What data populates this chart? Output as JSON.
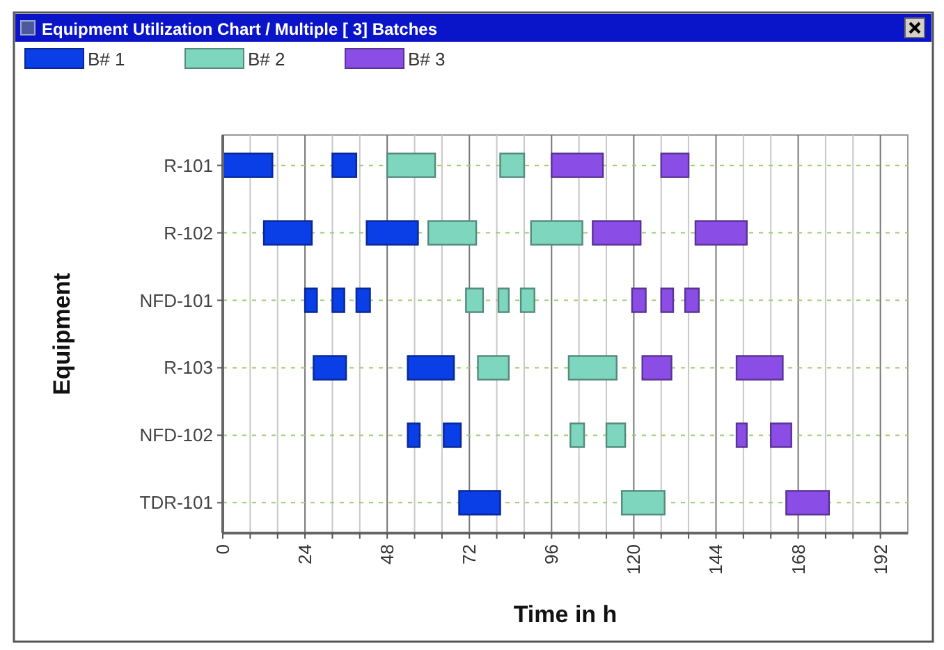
{
  "chart_data": {
    "type": "bar",
    "orientation": "horizontal",
    "title": "Equipment Utilization Chart / Multiple [ 3] Batches",
    "xlabel": "Time in h",
    "ylabel": "Equipment",
    "categories": [
      "R-101",
      "R-102",
      "NFD-101",
      "R-103",
      "NFD-102",
      "TDR-101"
    ],
    "series": [
      {
        "name": "B# 1",
        "color": "#0a3ee6",
        "base": [
          0,
          12,
          24,
          26.5,
          54,
          69
        ],
        "values": [
          14.5,
          14,
          3.5,
          9.5,
          3.5,
          12
        ]
      },
      {
        "color": "#0a3ee6",
        "base": [
          32,
          42,
          32,
          54,
          64.5,
          null
        ],
        "values": [
          7,
          15,
          3.5,
          13.5,
          5,
          null
        ]
      },
      {
        "color": "#0a3ee6",
        "base": [
          null,
          null,
          39,
          null,
          null,
          null
        ],
        "values": [
          null,
          null,
          4,
          null,
          null,
          null
        ]
      },
      {
        "name": "B# 2",
        "color": "#7fd6bf",
        "base": [
          48,
          60,
          71,
          74.5,
          101.5,
          116.5
        ],
        "values": [
          14,
          14,
          5,
          9,
          4,
          12.5
        ]
      },
      {
        "color": "#7fd6bf",
        "base": [
          81,
          90,
          80.5,
          101,
          112,
          null
        ],
        "values": [
          7,
          15,
          3,
          14,
          5.5,
          null
        ]
      },
      {
        "color": "#7fd6bf",
        "base": [
          null,
          null,
          87,
          null,
          null,
          null
        ],
        "values": [
          null,
          null,
          4,
          null,
          null,
          null
        ]
      },
      {
        "name": "B# 3",
        "color": "#8a4ee6",
        "base": [
          96,
          108,
          119.5,
          122.5,
          150,
          164.5
        ],
        "values": [
          15,
          14,
          4,
          8.5,
          3,
          12.5
        ]
      },
      {
        "color": "#8a4ee6",
        "base": [
          128,
          138,
          128,
          150,
          160,
          null
        ],
        "values": [
          8,
          15,
          3.5,
          13.5,
          6,
          null
        ]
      },
      {
        "color": "#8a4ee6",
        "base": [
          null,
          null,
          135,
          null,
          null,
          null
        ],
        "values": [
          null,
          null,
          4,
          null,
          null,
          null
        ]
      }
    ],
    "xlim": [
      0,
      200
    ],
    "xticks": [
      0,
      {
        "value": 8,
        "label": null
      },
      {
        "value": 16,
        "label": null
      },
      24,
      {
        "value": 32,
        "label": null
      },
      {
        "value": 40,
        "label": null
      },
      48,
      {
        "value": 56,
        "label": null
      },
      {
        "value": 64,
        "label": null
      },
      72,
      {
        "value": 80,
        "label": null
      },
      {
        "value": 88,
        "label": null
      },
      96,
      {
        "value": 104,
        "label": null
      },
      {
        "value": 112,
        "label": null
      },
      120,
      {
        "value": 128,
        "label": null
      },
      {
        "value": 136,
        "label": null
      },
      144,
      {
        "value": 152,
        "label": null
      },
      {
        "value": 160,
        "label": null
      },
      168,
      {
        "value": 176,
        "label": null
      },
      {
        "value": 184,
        "label": null
      },
      192
    ],
    "grid": true,
    "legend": "top left"
  }
}
